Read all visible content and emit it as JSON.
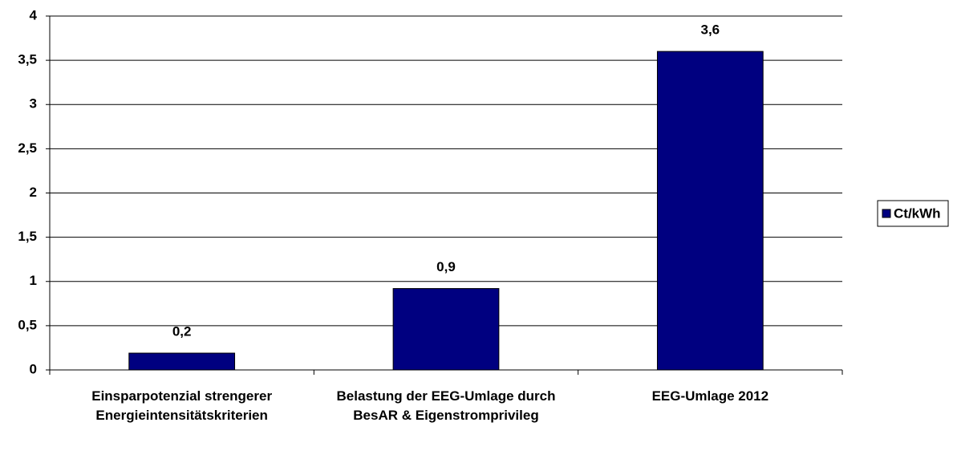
{
  "chart_data": {
    "type": "bar",
    "categories": [
      "Einsparpotenzial strengerer Energieintensitätskriterien",
      "Belastung der EEG-Umlage durch BesAR & Eigenstromprivileg",
      "EEG-Umlage 2012"
    ],
    "series": [
      {
        "name": "Ct/kWh",
        "color": "#000080",
        "values": [
          0.19,
          0.92,
          3.6
        ],
        "value_labels": [
          "0,2",
          "0,9",
          "3,6"
        ]
      }
    ],
    "ylim": [
      0,
      4
    ],
    "yticks": [
      0,
      {
        "value": 0.5,
        "label": "0,5"
      },
      1,
      {
        "value": 1.5,
        "label": "1,5"
      },
      2,
      {
        "value": 2.5,
        "label": "2,5"
      },
      3,
      {
        "value": 3.5,
        "label": "3,5"
      },
      4
    ],
    "grid": true,
    "legend": "right"
  }
}
